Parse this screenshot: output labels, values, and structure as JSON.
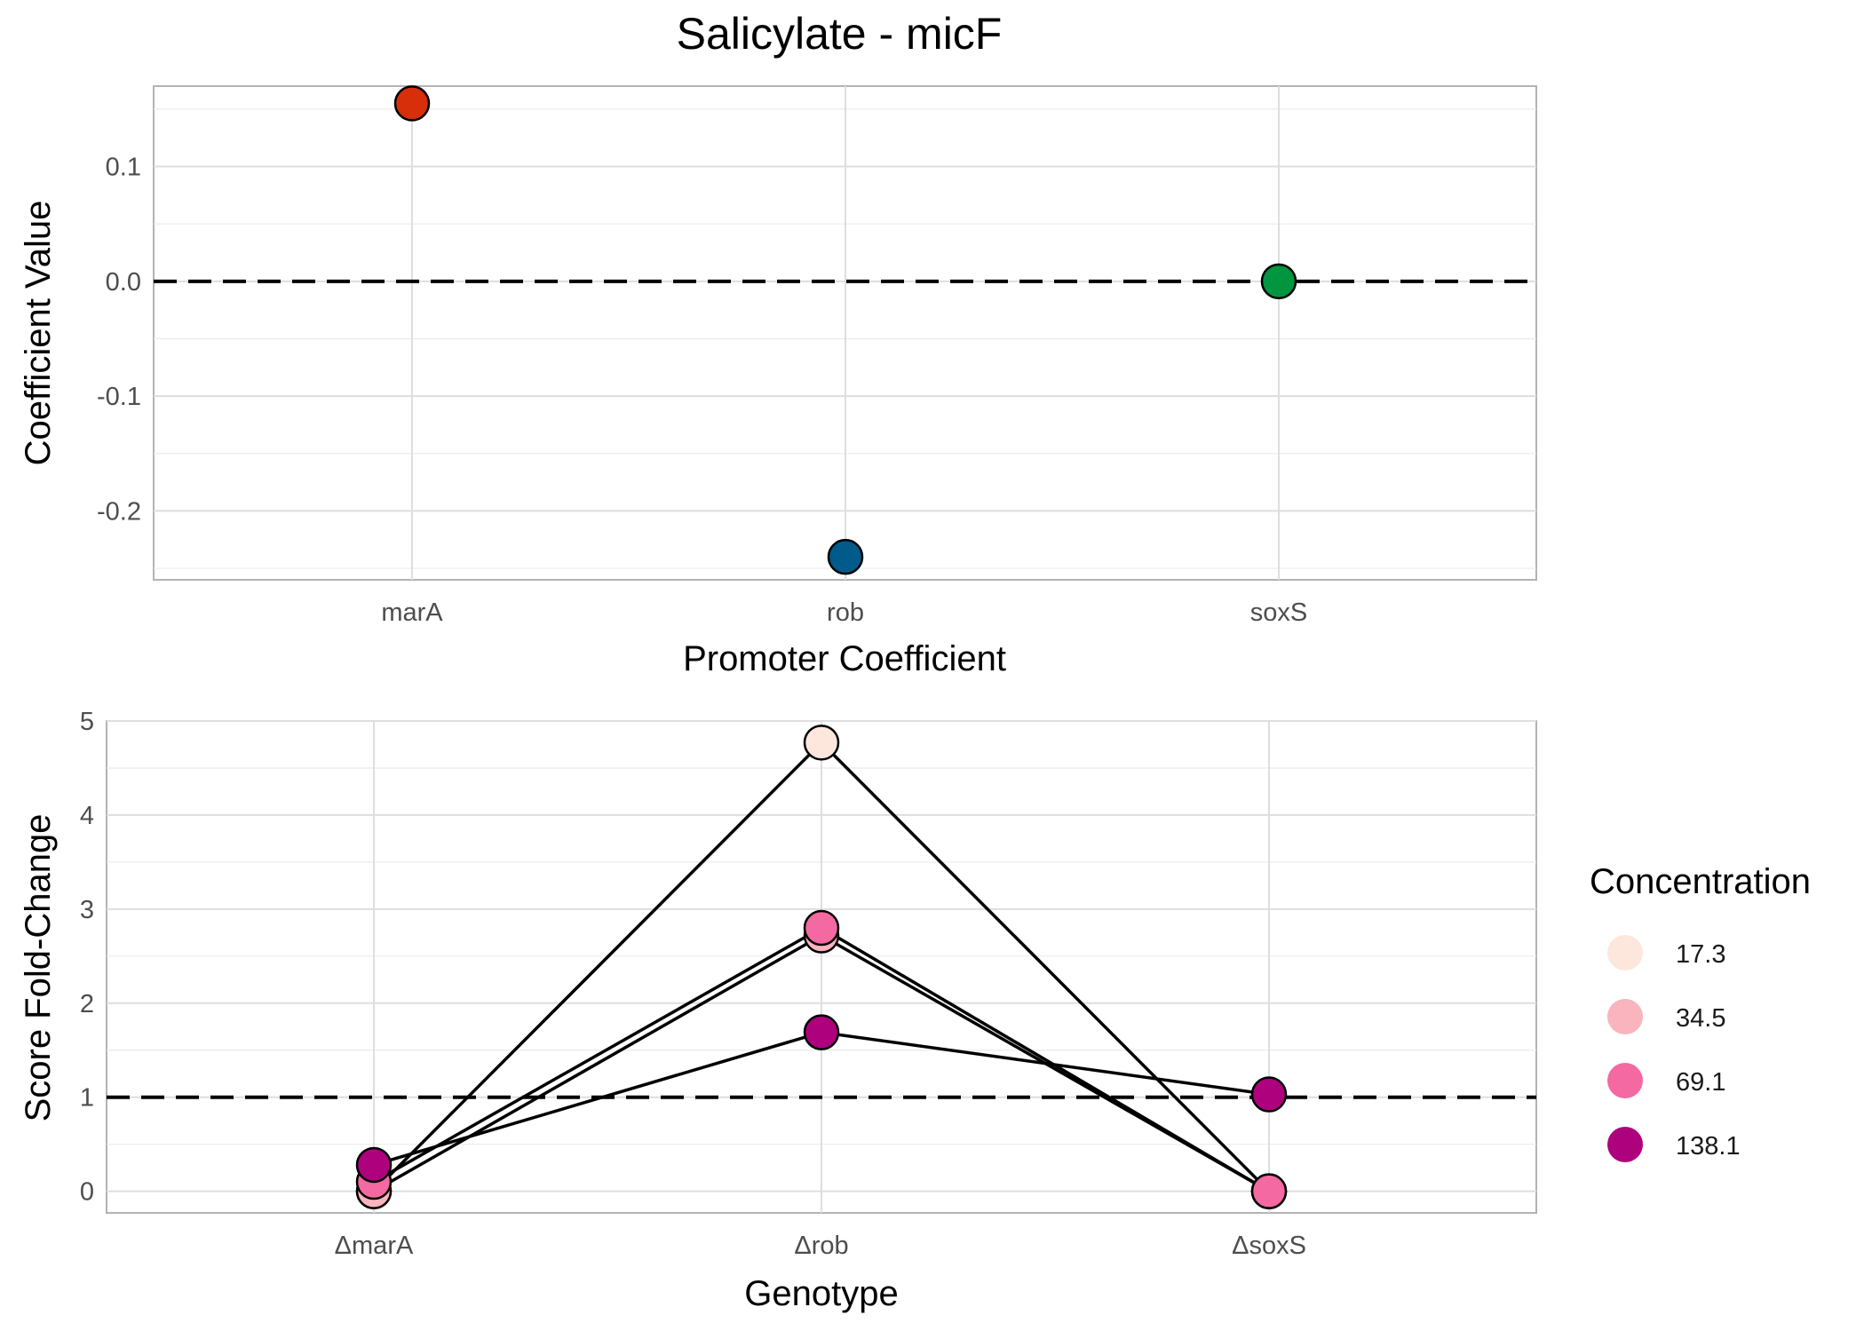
{
  "title": "Salicylate - micF",
  "chart_data": [
    {
      "type": "scatter",
      "xlabel": "Promoter Coefficient",
      "ylabel": "Coefficient Value",
      "categories": [
        "marA",
        "rob",
        "soxS"
      ],
      "values": [
        0.155,
        -0.24,
        0.0
      ],
      "point_colors": [
        "#d62f0a",
        "#005b8a",
        "#00963f"
      ],
      "ylim": [
        -0.26,
        0.17
      ],
      "yticks": [
        0.1,
        0.0,
        -0.1,
        -0.2
      ],
      "ytick_labels": [
        "0.1",
        "0.0",
        "-0.1",
        "-0.2"
      ],
      "reference_line": 0,
      "grid": true
    },
    {
      "type": "line",
      "xlabel": "Genotype",
      "ylabel": "Score Fold-Change",
      "categories": [
        "ΔmarA",
        "Δrob",
        "ΔsoxS"
      ],
      "series": [
        {
          "name": "17.3",
          "color": "#fde7dd",
          "values": [
            0.0,
            4.77,
            0.0
          ]
        },
        {
          "name": "34.5",
          "color": "#f9b4bd",
          "values": [
            0.0,
            2.72,
            0.0
          ]
        },
        {
          "name": "69.1",
          "color": "#f469a1",
          "values": [
            0.1,
            2.8,
            0.0
          ]
        },
        {
          "name": "138.1",
          "color": "#ae017e",
          "values": [
            0.28,
            1.69,
            1.03
          ]
        }
      ],
      "ylim": [
        -0.23,
        5.0
      ],
      "yticks": [
        0,
        1,
        2,
        3,
        4,
        5
      ],
      "ytick_labels": [
        "0",
        "1",
        "2",
        "3",
        "4",
        "5"
      ],
      "reference_line": 1,
      "grid": true,
      "legend_title": "Concentration",
      "legend_position": "right"
    }
  ]
}
